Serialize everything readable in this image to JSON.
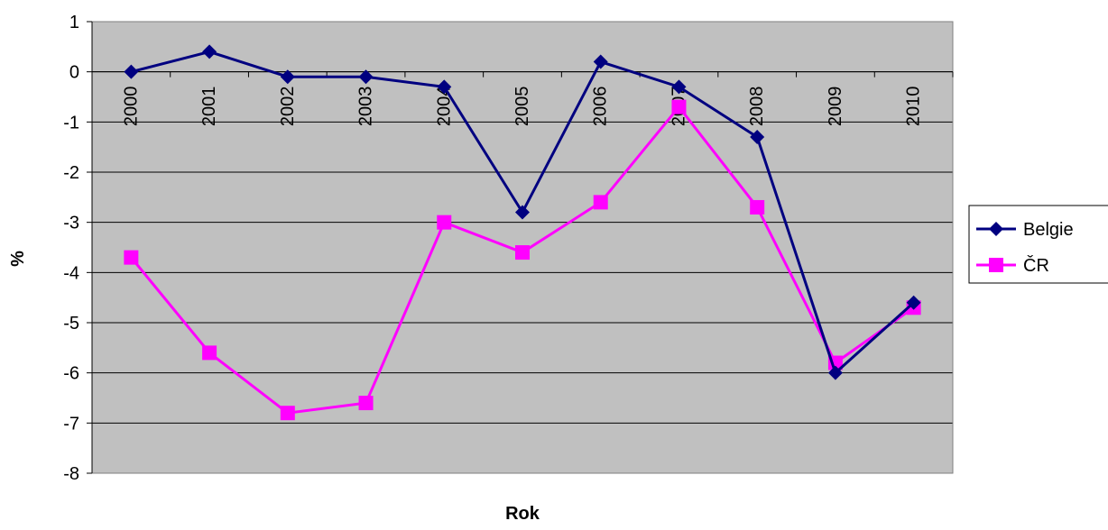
{
  "chart_data": {
    "type": "line",
    "title": "",
    "xlabel": "Rok",
    "ylabel": "%",
    "categories": [
      "2000",
      "2001",
      "2002",
      "2003",
      "2004",
      "2005",
      "2006",
      "2007",
      "2008",
      "2009",
      "2010"
    ],
    "ylim": [
      -8,
      1
    ],
    "yticks": [
      1,
      0,
      -1,
      -2,
      -3,
      -4,
      -5,
      -6,
      -7,
      -8
    ],
    "grid": true,
    "legend_position": "right",
    "plot_background": "#c0c0c0",
    "series": [
      {
        "name": "Belgie",
        "color": "#000080",
        "marker": "diamond",
        "values": [
          0.0,
          0.4,
          -0.1,
          -0.1,
          -0.3,
          -2.8,
          0.2,
          -0.3,
          -1.3,
          -6.0,
          -4.6
        ]
      },
      {
        "name": "ČR",
        "color": "#ff00ff",
        "marker": "square",
        "values": [
          -3.7,
          -5.6,
          -6.8,
          -6.6,
          -3.0,
          -3.6,
          -2.6,
          -0.7,
          -2.7,
          -5.8,
          -4.7
        ]
      }
    ]
  }
}
